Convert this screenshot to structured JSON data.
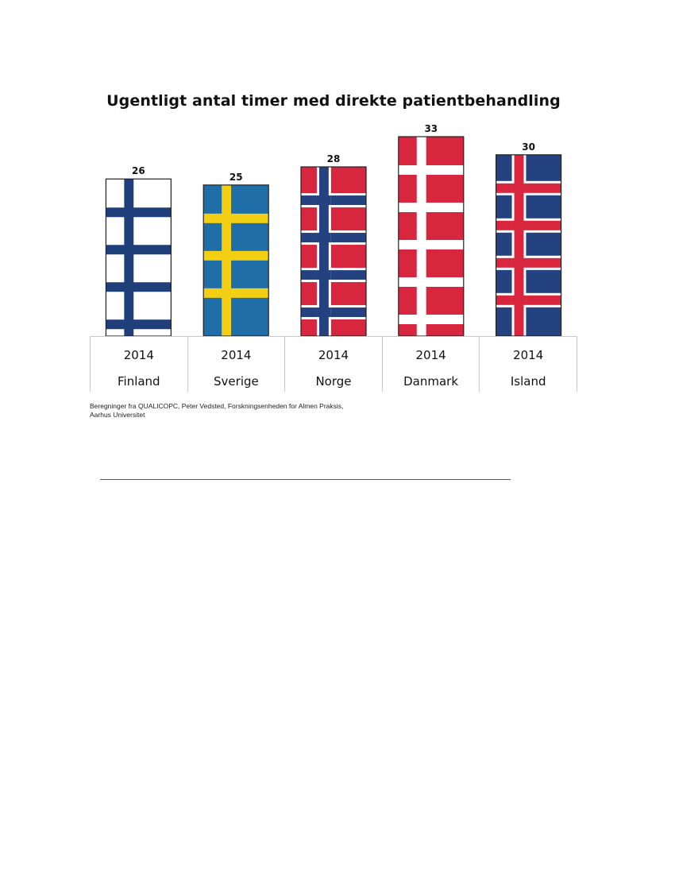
{
  "chart_data": {
    "type": "bar",
    "title": "Ugentligt antal timer med direkte patientbehandling",
    "categories": [
      "Finland",
      "Sverige",
      "Norge",
      "Danmark",
      "Island"
    ],
    "years": [
      "2014",
      "2014",
      "2014",
      "2014",
      "2014"
    ],
    "values": [
      26,
      25,
      28,
      33,
      30
    ],
    "ylim": [
      0,
      33
    ],
    "grid": false,
    "legend": "none",
    "bar_fills": [
      {
        "country": "Finland",
        "field": "#ffffff",
        "cross": "#1f3f7a",
        "border": null
      },
      {
        "country": "Sverige",
        "field": "#1f6ea8",
        "cross": "#f2cf13",
        "border": null
      },
      {
        "country": "Norge",
        "field": "#d7263d",
        "cross": "#24427f",
        "border": "#ffffff"
      },
      {
        "country": "Danmark",
        "field": "#d7263d",
        "cross": "#ffffff",
        "border": null
      },
      {
        "country": "Island",
        "field": "#24427f",
        "cross": "#d7263d",
        "border": "#ffffff"
      }
    ]
  },
  "source_note": "Beregninger fra QUALICOPC, Peter Vedsted, Forskningsenheden for Almen Praksis, Aarhus Universitet"
}
